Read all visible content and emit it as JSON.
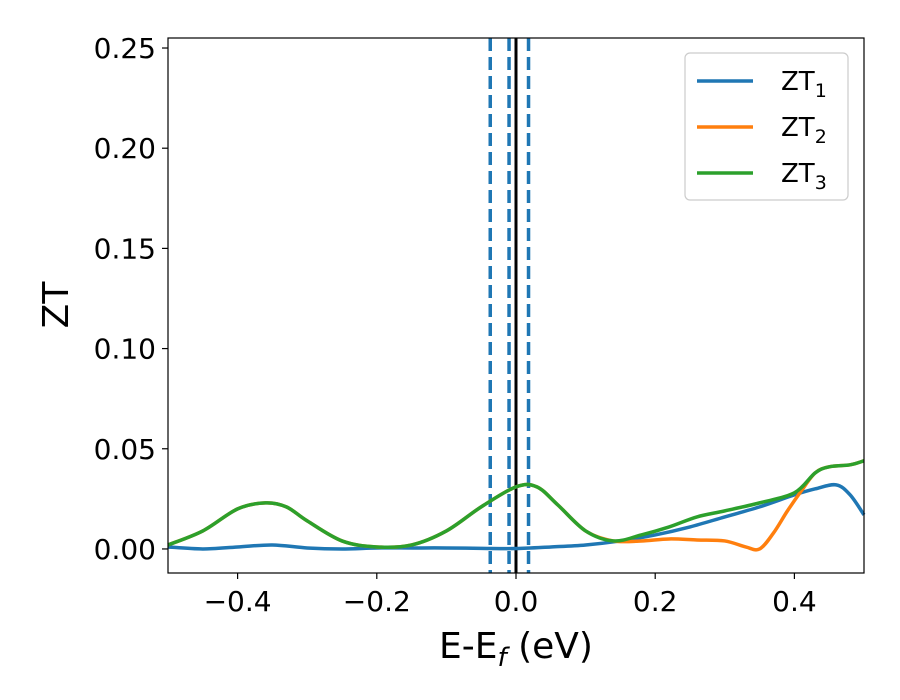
{
  "chart_data": {
    "type": "line",
    "xlabel": "E-E",
    "xlabel_sub": "f",
    "xlabel_unit": " (eV)",
    "ylabel": "ZT",
    "xlim": [
      -0.5,
      0.5
    ],
    "ylim": [
      -0.012,
      0.255
    ],
    "xticks": [
      -0.4,
      -0.2,
      0.0,
      0.2,
      0.4
    ],
    "xtick_labels": [
      "−0.4",
      "−0.2",
      "0.0",
      "0.2",
      "0.4"
    ],
    "yticks": [
      0.0,
      0.05,
      0.1,
      0.15,
      0.2,
      0.25
    ],
    "ytick_labels": [
      "0.00",
      "0.05",
      "0.10",
      "0.15",
      "0.20",
      "0.25"
    ],
    "grid": false,
    "legend_position": "top-right",
    "vlines": [
      {
        "x": 0.0,
        "style": "solid",
        "color": "#000000"
      },
      {
        "x": -0.037,
        "style": "dashed",
        "color": "#1f77b4"
      },
      {
        "x": -0.01,
        "style": "dashed",
        "color": "#1f77b4"
      },
      {
        "x": 0.018,
        "style": "dashed",
        "color": "#1f77b4"
      }
    ],
    "series": [
      {
        "name": "ZT",
        "name_sub": "1",
        "color": "#1f77b4",
        "x": [
          -0.5,
          -0.45,
          -0.4,
          -0.35,
          -0.3,
          -0.25,
          -0.2,
          -0.15,
          -0.1,
          -0.05,
          0.0,
          0.05,
          0.1,
          0.15,
          0.2,
          0.25,
          0.3,
          0.35,
          0.4,
          0.43,
          0.46,
          0.48,
          0.5
        ],
        "y": [
          0.001,
          0.0,
          0.001,
          0.002,
          0.0005,
          0.0,
          0.0005,
          0.0005,
          0.0005,
          0.0003,
          0.0002,
          0.001,
          0.002,
          0.004,
          0.007,
          0.011,
          0.016,
          0.021,
          0.027,
          0.03,
          0.032,
          0.027,
          0.017
        ]
      },
      {
        "name": "ZT",
        "name_sub": "2",
        "color": "#ff7f0e",
        "x": [
          -0.5,
          -0.45,
          -0.4,
          -0.36,
          -0.33,
          -0.3,
          -0.25,
          -0.2,
          -0.15,
          -0.1,
          -0.05,
          0.0,
          0.03,
          0.06,
          0.1,
          0.14,
          0.18,
          0.22,
          0.26,
          0.3,
          0.33,
          0.35,
          0.37,
          0.39,
          0.41,
          0.43,
          0.45,
          0.48,
          0.5
        ],
        "y": [
          0.002,
          0.009,
          0.02,
          0.023,
          0.021,
          0.014,
          0.004,
          0.001,
          0.002,
          0.009,
          0.021,
          0.031,
          0.031,
          0.022,
          0.009,
          0.004,
          0.004,
          0.005,
          0.0045,
          0.004,
          0.001,
          0.0,
          0.008,
          0.019,
          0.029,
          0.038,
          0.041,
          0.042,
          0.044
        ]
      },
      {
        "name": "ZT",
        "name_sub": "3",
        "color": "#2ca02c",
        "x": [
          -0.5,
          -0.45,
          -0.4,
          -0.36,
          -0.33,
          -0.3,
          -0.25,
          -0.2,
          -0.15,
          -0.1,
          -0.05,
          0.0,
          0.03,
          0.06,
          0.1,
          0.14,
          0.18,
          0.22,
          0.26,
          0.3,
          0.35,
          0.4,
          0.43,
          0.45,
          0.48,
          0.5
        ],
        "y": [
          0.002,
          0.009,
          0.02,
          0.023,
          0.021,
          0.014,
          0.004,
          0.001,
          0.002,
          0.009,
          0.021,
          0.031,
          0.031,
          0.022,
          0.009,
          0.004,
          0.007,
          0.011,
          0.016,
          0.019,
          0.023,
          0.028,
          0.038,
          0.041,
          0.042,
          0.044
        ]
      }
    ]
  }
}
